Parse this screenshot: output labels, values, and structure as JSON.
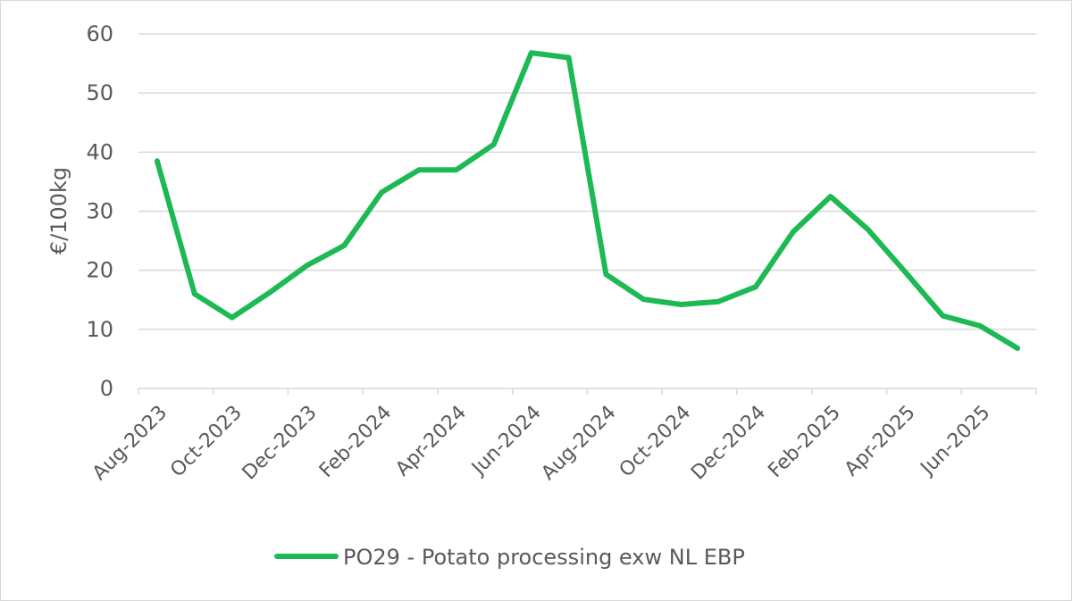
{
  "chart_data": {
    "type": "line",
    "title": "",
    "ylabel": "€/100kg",
    "xlabel": "",
    "ylim": [
      0,
      60
    ],
    "yticks": [
      0,
      10,
      20,
      30,
      40,
      50,
      60
    ],
    "x_tick_labels": [
      "Aug-2023",
      "Oct-2023",
      "Dec-2023",
      "Feb-2024",
      "Apr-2024",
      "Jun-2024",
      "Aug-2024",
      "Oct-2024",
      "Dec-2024",
      "Feb-2025",
      "Apr-2025",
      "Jun-2025"
    ],
    "x": [
      "Aug-2023",
      "Sep-2023",
      "Oct-2023",
      "Nov-2023",
      "Dec-2023",
      "Jan-2024",
      "Feb-2024",
      "Mar-2024",
      "Apr-2024",
      "May-2024",
      "Jun-2024",
      "Jul-2024",
      "Aug-2024",
      "Sep-2024",
      "Oct-2024",
      "Nov-2024",
      "Dec-2024",
      "Jan-2025",
      "Feb-2025",
      "Mar-2025",
      "Apr-2025",
      "May-2025",
      "Jun-2025",
      "Jul-2025"
    ],
    "grid": true,
    "legend_position": "bottom",
    "series": [
      {
        "name": "PO29 - Potato processing exw NL EBP",
        "color": "#1db954",
        "values": [
          38.5,
          16.0,
          12.0,
          16.2,
          20.8,
          24.2,
          33.2,
          37.0,
          37.0,
          41.3,
          56.8,
          56.0,
          19.3,
          15.1,
          14.2,
          14.7,
          17.2,
          26.5,
          32.5,
          26.9,
          19.7,
          12.3,
          10.6,
          6.8
        ]
      }
    ]
  }
}
